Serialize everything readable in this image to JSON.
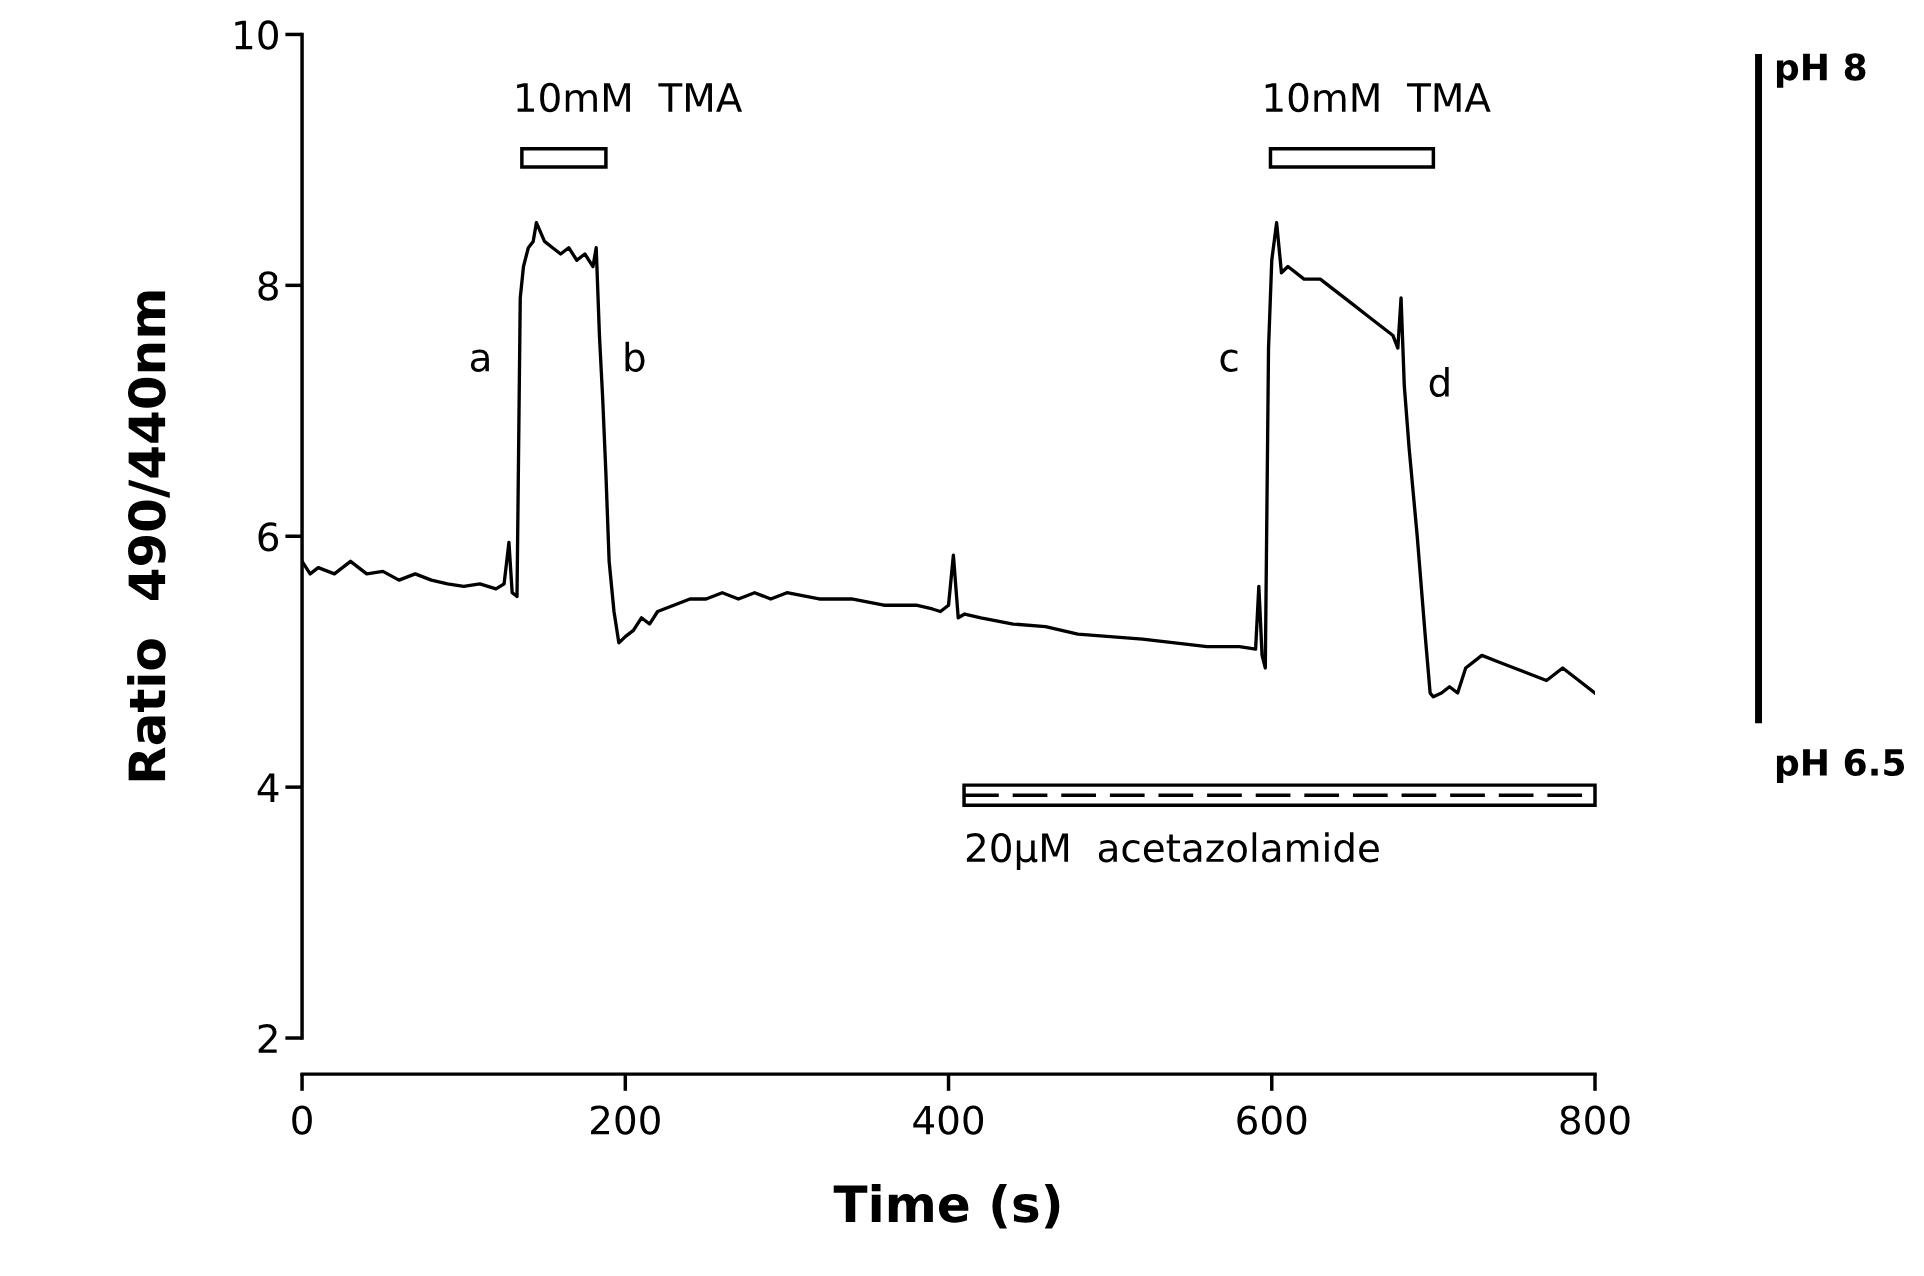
{
  "chart_data": {
    "type": "line",
    "xlabel": "Time (s)",
    "ylabel": "Ratio  490/440nm",
    "xlim": [
      0,
      800
    ],
    "ylim": [
      2,
      10
    ],
    "xticks": [
      0,
      200,
      400,
      600,
      800
    ],
    "yticks": [
      2,
      4,
      6,
      8,
      10
    ],
    "grid": false,
    "legend": false,
    "series": [
      {
        "color": "#000000",
        "x": [
          0,
          5,
          10,
          20,
          30,
          40,
          50,
          60,
          70,
          80,
          90,
          100,
          110,
          120,
          125,
          128,
          130,
          133,
          135,
          137,
          140,
          143,
          145,
          150,
          155,
          160,
          165,
          170,
          175,
          180,
          182,
          184,
          186,
          188,
          190,
          193,
          196,
          200,
          205,
          210,
          215,
          220,
          230,
          240,
          250,
          260,
          270,
          280,
          290,
          300,
          320,
          340,
          360,
          380,
          390,
          395,
          400,
          403,
          406,
          410,
          420,
          440,
          460,
          480,
          500,
          520,
          540,
          560,
          580,
          590,
          592,
          594,
          596,
          598,
          600,
          603,
          606,
          610,
          620,
          630,
          640,
          650,
          660,
          670,
          675,
          678,
          680,
          682,
          685,
          690,
          695,
          698,
          700,
          705,
          710,
          715,
          720,
          730,
          740,
          750,
          760,
          770,
          780,
          790,
          800
        ],
        "values": [
          5.8,
          5.7,
          5.75,
          5.7,
          5.8,
          5.7,
          5.72,
          5.65,
          5.7,
          5.65,
          5.62,
          5.6,
          5.62,
          5.58,
          5.62,
          5.95,
          5.55,
          5.52,
          7.9,
          8.15,
          8.3,
          8.35,
          8.5,
          8.35,
          8.3,
          8.25,
          8.3,
          8.2,
          8.25,
          8.15,
          8.3,
          7.6,
          7.1,
          6.5,
          5.8,
          5.4,
          5.15,
          5.2,
          5.25,
          5.35,
          5.3,
          5.4,
          5.45,
          5.5,
          5.5,
          5.55,
          5.5,
          5.55,
          5.5,
          5.55,
          5.5,
          5.5,
          5.45,
          5.45,
          5.42,
          5.4,
          5.45,
          5.85,
          5.35,
          5.38,
          5.35,
          5.3,
          5.28,
          5.22,
          5.2,
          5.18,
          5.15,
          5.12,
          5.12,
          5.1,
          5.6,
          5.05,
          4.95,
          7.5,
          8.2,
          8.5,
          8.1,
          8.15,
          8.05,
          8.05,
          7.95,
          7.85,
          7.75,
          7.65,
          7.6,
          7.5,
          7.9,
          7.2,
          6.7,
          6.0,
          5.2,
          4.75,
          4.72,
          4.75,
          4.8,
          4.75,
          4.95,
          5.05,
          5.0,
          4.95,
          4.9,
          4.85,
          4.95,
          4.85,
          4.75
        ]
      }
    ],
    "annotations": [
      "10mM  TMA",
      "10mM  TMA",
      "20μM  acetazolamide",
      "a",
      "b",
      "c",
      "d",
      "pH 8",
      "pH 6.5"
    ]
  }
}
